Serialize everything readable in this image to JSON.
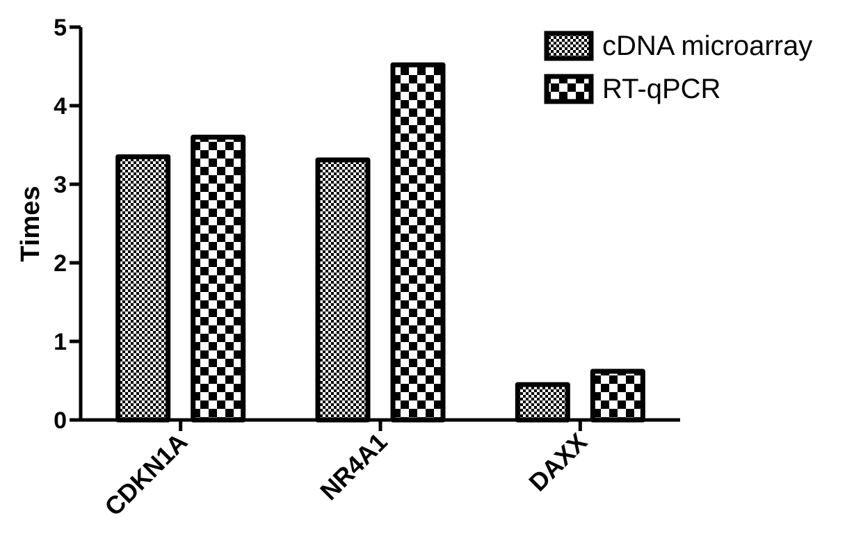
{
  "chart_data": {
    "type": "bar",
    "title": "",
    "xlabel": "",
    "ylabel": "Times",
    "ylim": [
      0,
      5
    ],
    "yticks": [
      "0",
      "1",
      "2",
      "3",
      "4",
      "5"
    ],
    "categories": [
      "CDKN1A",
      "NR4A1",
      "DAXX"
    ],
    "series": [
      {
        "name": "cDNA microarray",
        "values": [
          3.35,
          3.31,
          0.45
        ],
        "pattern": "fine-checker"
      },
      {
        "name": "RT-qPCR",
        "values": [
          3.6,
          4.52,
          0.62
        ],
        "pattern": "coarse-checker"
      }
    ],
    "legend_position": "top-right",
    "grid": false
  }
}
